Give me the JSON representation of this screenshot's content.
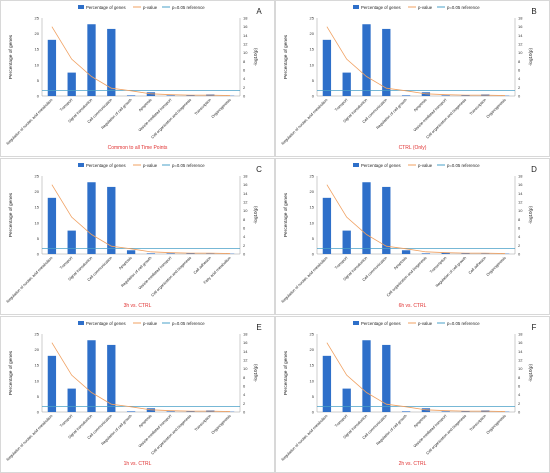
{
  "legend": {
    "bar_label": "Percentage of genes",
    "line_label": "p-value",
    "ref_label": "p=0.05 reference"
  },
  "ylabel_left": "Percentage of genes",
  "ylabel_right": "-log10(p)",
  "colors": {
    "bar": "#2e6fc9",
    "line": "#f0a060",
    "ref": "#4aa0c8",
    "caption": "#e03030"
  },
  "chart_data": [
    {
      "type": "bar",
      "panel": "A",
      "caption": "Common to all Time Points",
      "categories": [
        "Regulation of nucleic acid metabolism",
        "Transport",
        "Signal transduction",
        "Cell communication",
        "Regulation of cell growth",
        "Apoptosis",
        "Vesicle-mediated transport",
        "Cell organization and biogenesis",
        "Transcription",
        "Organogenesis"
      ],
      "values": [
        18,
        7.5,
        23,
        21.5,
        0.2,
        1.2,
        0.2,
        0.2,
        0.5,
        0.1
      ],
      "series": [
        {
          "values": [
            16,
            8.5,
            4.5,
            1.8,
            1.2,
            0.5,
            0.3,
            0.2,
            0.2,
            0.1
          ]
        }
      ],
      "ylim": [
        0,
        25
      ],
      "ylim_right": [
        0,
        18
      ],
      "reference": 1.3
    },
    {
      "type": "bar",
      "panel": "B",
      "caption": "CTRL (Only)",
      "categories": [
        "Regulation of nucleic acid metabolism",
        "Transport",
        "Signal transduction",
        "Cell communication",
        "Regulation of cell growth",
        "Apoptosis",
        "Vesicle-mediated transport",
        "Cell organization and biogenesis",
        "Transcription",
        "Organogenesis"
      ],
      "values": [
        18,
        7.5,
        23,
        21.5,
        0.2,
        1.2,
        0.2,
        0.2,
        0.5,
        0.1
      ],
      "series": [
        {
          "values": [
            16,
            8.5,
            4.5,
            1.8,
            1.2,
            0.5,
            0.3,
            0.2,
            0.2,
            0.1
          ]
        }
      ],
      "ylim": [
        0,
        25
      ],
      "ylim_right": [
        0,
        18
      ],
      "reference": 1.3
    },
    {
      "type": "bar",
      "panel": "C",
      "caption": "3h vs. CTRL",
      "categories": [
        "Regulation of nucleic acid metabolism",
        "Transport",
        "Signal transduction",
        "Cell communication",
        "Apoptosis",
        "Regulation of cell growth",
        "Vesicle-mediated transport",
        "Cell organization and biogenesis",
        "Cell adhesion",
        "Fatty acid metabolism"
      ],
      "values": [
        18,
        7.5,
        23,
        21.5,
        1.2,
        0.2,
        0.2,
        0.2,
        0.1,
        0.1
      ],
      "series": [
        {
          "values": [
            16,
            8.5,
            4.5,
            1.8,
            1.2,
            0.5,
            0.3,
            0.2,
            0.2,
            0.1
          ]
        }
      ],
      "ylim": [
        0,
        25
      ],
      "ylim_right": [
        0,
        18
      ],
      "reference": 1.3
    },
    {
      "type": "bar",
      "panel": "D",
      "caption": "6h vs. CTRL",
      "categories": [
        "Regulation of nucleic acid metabolism",
        "Transport",
        "Signal transduction",
        "Cell communication",
        "Apoptosis",
        "Cell organization and biogenesis",
        "Transcription",
        "Regulation of cell growth",
        "Cell adhesion",
        "Organogenesis"
      ],
      "values": [
        18,
        7.5,
        23,
        21.5,
        1.2,
        0.2,
        0.5,
        0.2,
        0.1,
        0.1
      ],
      "series": [
        {
          "values": [
            16,
            8.5,
            4.5,
            1.8,
            1.2,
            0.5,
            0.3,
            0.2,
            0.2,
            0.1
          ]
        }
      ],
      "ylim": [
        0,
        25
      ],
      "ylim_right": [
        0,
        18
      ],
      "reference": 1.3
    },
    {
      "type": "bar",
      "panel": "E",
      "caption": "1h vs. CTRL",
      "categories": [
        "Regulation of nucleic acid metabolism",
        "Transport",
        "Signal transduction",
        "Cell communication",
        "Regulation of cell growth",
        "Apoptosis",
        "Vesicle-mediated transport",
        "Cell organization and biogenesis",
        "Transcription",
        "Organogenesis"
      ],
      "values": [
        18,
        7.5,
        23,
        21.5,
        0.2,
        1.2,
        0.2,
        0.2,
        0.5,
        0.1
      ],
      "series": [
        {
          "values": [
            16,
            8.5,
            4.5,
            1.8,
            1.2,
            0.5,
            0.3,
            0.2,
            0.2,
            0.1
          ]
        }
      ],
      "ylim": [
        0,
        25
      ],
      "ylim_right": [
        0,
        18
      ],
      "reference": 1.3
    },
    {
      "type": "bar",
      "panel": "F",
      "caption": "2h vs. CTRL",
      "categories": [
        "Regulation of nucleic acid metabolism",
        "Transport",
        "Signal transduction",
        "Cell communication",
        "Regulation of cell growth",
        "Apoptosis",
        "Vesicle-mediated transport",
        "Cell organization and biogenesis",
        "Transcription",
        "Organogenesis"
      ],
      "values": [
        18,
        7.5,
        23,
        21.5,
        0.2,
        1.2,
        0.2,
        0.2,
        0.5,
        0.1
      ],
      "series": [
        {
          "values": [
            16,
            8.5,
            4.5,
            1.8,
            1.2,
            0.5,
            0.3,
            0.2,
            0.2,
            0.1
          ]
        }
      ],
      "ylim": [
        0,
        25
      ],
      "ylim_right": [
        0,
        18
      ],
      "reference": 1.3
    }
  ]
}
